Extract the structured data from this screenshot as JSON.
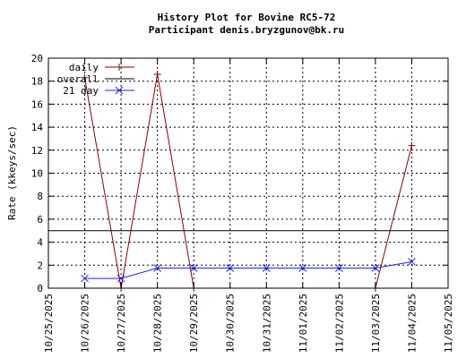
{
  "chart_data": {
    "type": "line",
    "title": "History Plot for Bovine RC5-72",
    "subtitle": "Participant denis.bryzgunov@bk.ru",
    "xlabel": "",
    "ylabel": "Rate (kkeys/sec)",
    "x_ticks": [
      "10/25/2025",
      "10/26/2025",
      "10/27/2025",
      "10/28/2025",
      "10/29/2025",
      "10/30/2025",
      "10/31/2025",
      "11/01/2025",
      "11/02/2025",
      "11/03/2025",
      "11/04/2025",
      "11/05/2025"
    ],
    "y_ticks": [
      0,
      2,
      4,
      6,
      8,
      10,
      12,
      14,
      16,
      18,
      20
    ],
    "xlim": [
      "10/25/2025",
      "11/05/2025"
    ],
    "ylim": [
      0,
      20
    ],
    "grid": true,
    "legend": "top-left",
    "series": [
      {
        "name": "daily",
        "color": "#8b0000",
        "marker": "plus",
        "points": [
          [
            "10/26/2025",
            18.3
          ],
          [
            "10/27/2025",
            0
          ],
          [
            "10/28/2025",
            18.6
          ],
          [
            "10/29/2025",
            0
          ],
          [
            "11/03/2025",
            0
          ],
          [
            "11/04/2025",
            12.4
          ]
        ]
      },
      {
        "name": "overall",
        "color": "#000000",
        "marker": "none",
        "constant": 5.0
      },
      {
        "name": "21 day",
        "color": "#2020ff",
        "marker": "cross",
        "points": [
          [
            "10/26/2025",
            0.85
          ],
          [
            "10/27/2025",
            0.85
          ],
          [
            "10/28/2025",
            1.75
          ],
          [
            "10/29/2025",
            1.75
          ],
          [
            "10/30/2025",
            1.75
          ],
          [
            "10/31/2025",
            1.75
          ],
          [
            "11/01/2025",
            1.75
          ],
          [
            "11/02/2025",
            1.75
          ],
          [
            "11/03/2025",
            1.75
          ],
          [
            "11/04/2025",
            2.3
          ]
        ]
      }
    ]
  }
}
